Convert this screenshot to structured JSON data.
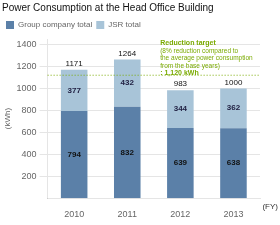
{
  "chart_data": {
    "type": "bar",
    "stacked": true,
    "title": "Power Consumption at the Head Office Building",
    "categories": [
      "2010",
      "2011",
      "2012",
      "2013"
    ],
    "series": [
      {
        "name": "Group company total",
        "color": "#5b80a8",
        "values": [
          794,
          832,
          639,
          638
        ]
      },
      {
        "name": "JSR total",
        "color": "#a8c4d8",
        "values": [
          377,
          432,
          344,
          362
        ]
      }
    ],
    "totals": [
      1171,
      1264,
      983,
      1000
    ],
    "data_labels": true,
    "ylabel": "(kWh)",
    "xlabel": "(FY)",
    "ylim": [
      0,
      1450
    ],
    "yticks": [
      200,
      400,
      600,
      800,
      1000,
      1200,
      1400
    ],
    "grid": true,
    "legend": "upper left",
    "annotations": [
      {
        "y": 1120,
        "color": "#7aaa00",
        "line_style": "dotted",
        "text": [
          "Reduction target",
          "(8% reduction compared to",
          "the average power consumption",
          "from the base years)",
          ": 1,120 kWh"
        ]
      }
    ]
  }
}
